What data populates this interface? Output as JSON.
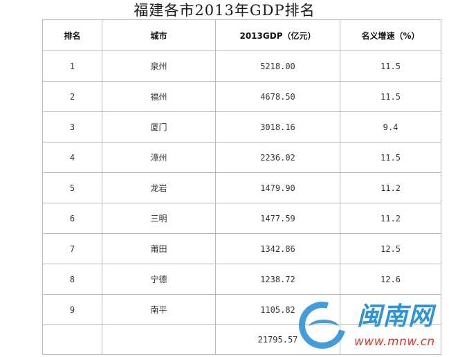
{
  "title": "福建各市2013年GDP排名",
  "table": {
    "headers": [
      "排名",
      "城市",
      "2013GDP（亿元）",
      "名义增速（%）"
    ],
    "rows": [
      {
        "rank": "1",
        "city": "泉州",
        "gdp": "5218.00",
        "growth": "11.5"
      },
      {
        "rank": "2",
        "city": "福州",
        "gdp": "4678.50",
        "growth": "11.5"
      },
      {
        "rank": "3",
        "city": "厦门",
        "gdp": "3018.16",
        "growth": "9.4"
      },
      {
        "rank": "4",
        "city": "漳州",
        "gdp": "2236.02",
        "growth": "11.5"
      },
      {
        "rank": "5",
        "city": "龙岩",
        "gdp": "1479.90",
        "growth": "11.2"
      },
      {
        "rank": "6",
        "city": "三明",
        "gdp": "1477.59",
        "growth": "11.2"
      },
      {
        "rank": "7",
        "city": "莆田",
        "gdp": "1342.86",
        "growth": "12.5"
      },
      {
        "rank": "8",
        "city": "宁德",
        "gdp": "1238.72",
        "growth": "12.6"
      },
      {
        "rank": "9",
        "city": "南平",
        "gdp": "1105.82",
        "growth": ""
      }
    ],
    "total": {
      "rank": "",
      "city": "",
      "gdp": "21795.57",
      "growth": ""
    }
  },
  "watermark": {
    "name": "闽南网",
    "url": "www.mnw.cn",
    "colors": {
      "blue": "#2f93d6",
      "red": "#d23b2a"
    }
  }
}
